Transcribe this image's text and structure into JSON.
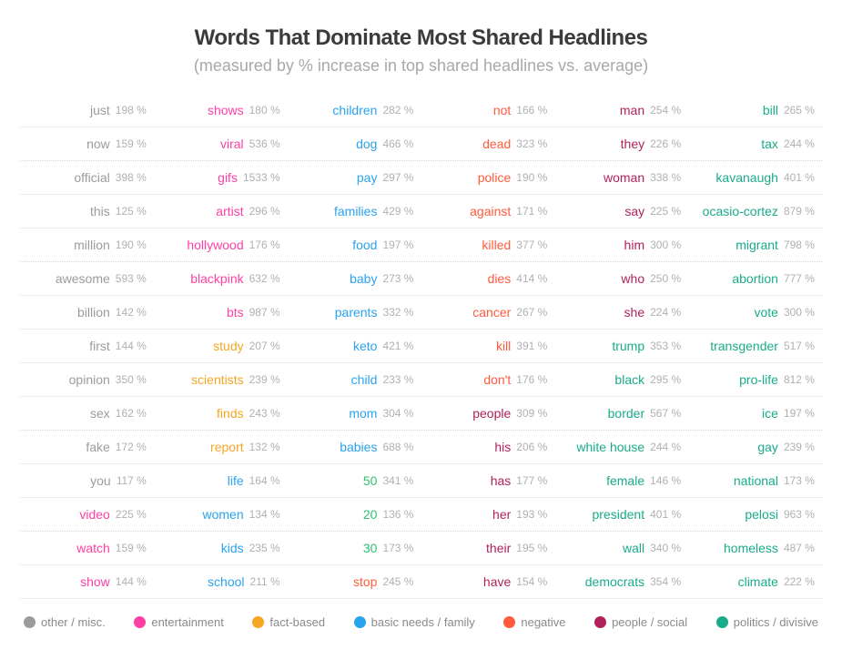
{
  "title": "Words That Dominate Most Shared Headlines",
  "subtitle": "(measured by % increase in top shared headlines vs. average)",
  "title_color": "#3b3b3b",
  "title_fontsize": 24,
  "subtitle_color": "#a8a8a8",
  "subtitle_fontsize": 18,
  "word_fontsize": 14,
  "pct_fontsize": 12,
  "pct_color": "#b0b0b0",
  "row_border_color": "#d8d8d8",
  "legend_fontsize": 13,
  "legend_label_color": "#8a8a8a",
  "categories": {
    "other": {
      "label": "other / misc.",
      "color": "#9b9b9b"
    },
    "entertainment": {
      "label": "entertainment",
      "color": "#ff3fa4"
    },
    "fact": {
      "label": "fact-based",
      "color": "#f5a623"
    },
    "family": {
      "label": "basic needs / family",
      "color": "#2aa3ef"
    },
    "negative": {
      "label": "negative",
      "color": "#ff5a3c"
    },
    "people": {
      "label": "people / social",
      "color": "#b0215b"
    },
    "politics": {
      "label": "politics / divisive",
      "color": "#1aab8a"
    },
    "number": {
      "label": "",
      "color": "#2fbf71"
    }
  },
  "legend_order": [
    "other",
    "entertainment",
    "fact",
    "family",
    "negative",
    "people",
    "politics"
  ],
  "columns": 6,
  "rows": [
    [
      {
        "w": "just",
        "p": 198,
        "c": "other"
      },
      {
        "w": "shows",
        "p": 180,
        "c": "entertainment"
      },
      {
        "w": "children",
        "p": 282,
        "c": "family"
      },
      {
        "w": "not",
        "p": 166,
        "c": "negative"
      },
      {
        "w": "man",
        "p": 254,
        "c": "people"
      },
      {
        "w": "bill",
        "p": 265,
        "c": "politics"
      }
    ],
    [
      {
        "w": "now",
        "p": 159,
        "c": "other"
      },
      {
        "w": "viral",
        "p": 536,
        "c": "entertainment"
      },
      {
        "w": "dog",
        "p": 466,
        "c": "family"
      },
      {
        "w": "dead",
        "p": 323,
        "c": "negative"
      },
      {
        "w": "they",
        "p": 226,
        "c": "people"
      },
      {
        "w": "tax",
        "p": 244,
        "c": "politics"
      }
    ],
    [
      {
        "w": "official",
        "p": 398,
        "c": "other"
      },
      {
        "w": "gifs",
        "p": 1533,
        "c": "entertainment"
      },
      {
        "w": "pay",
        "p": 297,
        "c": "family"
      },
      {
        "w": "police",
        "p": 190,
        "c": "negative"
      },
      {
        "w": "woman",
        "p": 338,
        "c": "people"
      },
      {
        "w": "kavanaugh",
        "p": 401,
        "c": "politics"
      }
    ],
    [
      {
        "w": "this",
        "p": 125,
        "c": "other"
      },
      {
        "w": "artist",
        "p": 296,
        "c": "entertainment"
      },
      {
        "w": "families",
        "p": 429,
        "c": "family"
      },
      {
        "w": "against",
        "p": 171,
        "c": "negative"
      },
      {
        "w": "say",
        "p": 225,
        "c": "people"
      },
      {
        "w": "ocasio-cortez",
        "p": 879,
        "c": "politics"
      }
    ],
    [
      {
        "w": "million",
        "p": 190,
        "c": "other"
      },
      {
        "w": "hollywood",
        "p": 176,
        "c": "entertainment"
      },
      {
        "w": "food",
        "p": 197,
        "c": "family"
      },
      {
        "w": "killed",
        "p": 377,
        "c": "negative"
      },
      {
        "w": "him",
        "p": 300,
        "c": "people"
      },
      {
        "w": "migrant",
        "p": 798,
        "c": "politics"
      }
    ],
    [
      {
        "w": "awesome",
        "p": 593,
        "c": "other"
      },
      {
        "w": "blackpink",
        "p": 632,
        "c": "entertainment"
      },
      {
        "w": "baby",
        "p": 273,
        "c": "family"
      },
      {
        "w": "dies",
        "p": 414,
        "c": "negative"
      },
      {
        "w": "who",
        "p": 250,
        "c": "people"
      },
      {
        "w": "abortion",
        "p": 777,
        "c": "politics"
      }
    ],
    [
      {
        "w": "billion",
        "p": 142,
        "c": "other"
      },
      {
        "w": "bts",
        "p": 987,
        "c": "entertainment"
      },
      {
        "w": "parents",
        "p": 332,
        "c": "family"
      },
      {
        "w": "cancer",
        "p": 267,
        "c": "negative"
      },
      {
        "w": "she",
        "p": 224,
        "c": "people"
      },
      {
        "w": "vote",
        "p": 300,
        "c": "politics"
      }
    ],
    [
      {
        "w": "first",
        "p": 144,
        "c": "other"
      },
      {
        "w": "study",
        "p": 207,
        "c": "fact"
      },
      {
        "w": "keto",
        "p": 421,
        "c": "family"
      },
      {
        "w": "kill",
        "p": 391,
        "c": "negative"
      },
      {
        "w": "trump",
        "p": 353,
        "c": "politics"
      },
      {
        "w": "transgender",
        "p": 517,
        "c": "politics"
      }
    ],
    [
      {
        "w": "opinion",
        "p": 350,
        "c": "other"
      },
      {
        "w": "scientists",
        "p": 239,
        "c": "fact"
      },
      {
        "w": "child",
        "p": 233,
        "c": "family"
      },
      {
        "w": "don't",
        "p": 176,
        "c": "negative"
      },
      {
        "w": "black",
        "p": 295,
        "c": "politics"
      },
      {
        "w": "pro-life",
        "p": 812,
        "c": "politics"
      }
    ],
    [
      {
        "w": "sex",
        "p": 162,
        "c": "other"
      },
      {
        "w": "finds",
        "p": 243,
        "c": "fact"
      },
      {
        "w": "mom",
        "p": 304,
        "c": "family"
      },
      {
        "w": "people",
        "p": 309,
        "c": "people"
      },
      {
        "w": "border",
        "p": 567,
        "c": "politics"
      },
      {
        "w": "ice",
        "p": 197,
        "c": "politics"
      }
    ],
    [
      {
        "w": "fake",
        "p": 172,
        "c": "other"
      },
      {
        "w": "report",
        "p": 132,
        "c": "fact"
      },
      {
        "w": "babies",
        "p": 688,
        "c": "family"
      },
      {
        "w": "his",
        "p": 206,
        "c": "people"
      },
      {
        "w": "white house",
        "p": 244,
        "c": "politics"
      },
      {
        "w": "gay",
        "p": 239,
        "c": "politics"
      }
    ],
    [
      {
        "w": "you",
        "p": 117,
        "c": "other"
      },
      {
        "w": "life",
        "p": 164,
        "c": "family"
      },
      {
        "w": "50",
        "p": 341,
        "c": "number"
      },
      {
        "w": "has",
        "p": 177,
        "c": "people"
      },
      {
        "w": "female",
        "p": 146,
        "c": "politics"
      },
      {
        "w": "national",
        "p": 173,
        "c": "politics"
      }
    ],
    [
      {
        "w": "video",
        "p": 225,
        "c": "entertainment"
      },
      {
        "w": "women",
        "p": 134,
        "c": "family"
      },
      {
        "w": "20",
        "p": 136,
        "c": "number"
      },
      {
        "w": "her",
        "p": 193,
        "c": "people"
      },
      {
        "w": "president",
        "p": 401,
        "c": "politics"
      },
      {
        "w": "pelosi",
        "p": 963,
        "c": "politics"
      }
    ],
    [
      {
        "w": "watch",
        "p": 159,
        "c": "entertainment"
      },
      {
        "w": "kids",
        "p": 235,
        "c": "family"
      },
      {
        "w": "30",
        "p": 173,
        "c": "number"
      },
      {
        "w": "their",
        "p": 195,
        "c": "people"
      },
      {
        "w": "wall",
        "p": 340,
        "c": "politics"
      },
      {
        "w": "homeless",
        "p": 487,
        "c": "politics"
      }
    ],
    [
      {
        "w": "show",
        "p": 144,
        "c": "entertainment"
      },
      {
        "w": "school",
        "p": 211,
        "c": "family"
      },
      {
        "w": "stop",
        "p": 245,
        "c": "negative"
      },
      {
        "w": "have",
        "p": 154,
        "c": "people"
      },
      {
        "w": "democrats",
        "p": 354,
        "c": "politics"
      },
      {
        "w": "climate",
        "p": 222,
        "c": "politics"
      }
    ]
  ]
}
